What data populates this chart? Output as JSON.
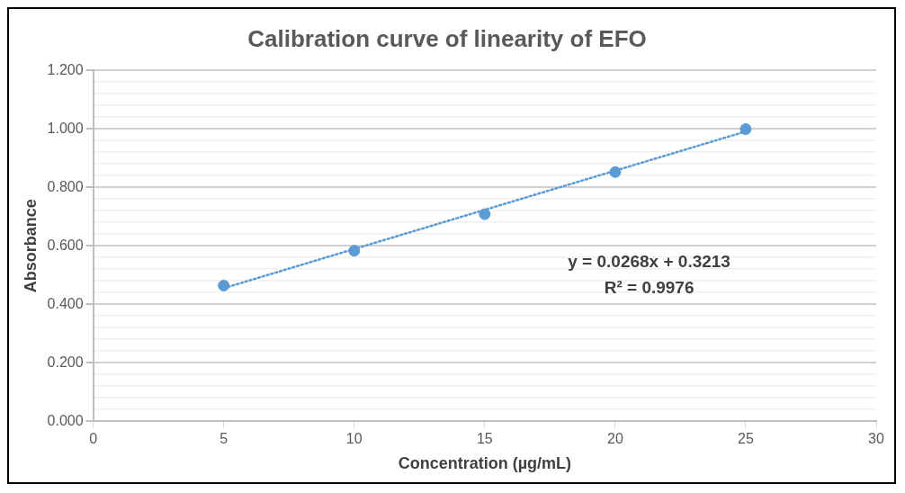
{
  "chart_data": {
    "type": "scatter",
    "title": "Calibration curve of linearity of EFO",
    "xlabel": "Concentration (µg/mL)",
    "ylabel": "Absorbance",
    "x": [
      5,
      10,
      15,
      20,
      25
    ],
    "series": [
      {
        "type": "scatter",
        "color": "#5b9bd5",
        "values": [
          0.464,
          0.583,
          0.708,
          0.852,
          0.999
        ],
        "marker": "circle"
      },
      {
        "type": "line",
        "color": "#5b9bd5",
        "x": [
          5,
          25
        ],
        "values": [
          0.455,
          0.991
        ],
        "line_style": "dotted",
        "marker": "none"
      }
    ],
    "xlim": [
      0,
      30
    ],
    "xticks": [
      0,
      5,
      10,
      15,
      20,
      25,
      30
    ],
    "ylim": [
      0,
      1.2
    ],
    "yticks": [
      {
        "value": 0,
        "label": "0.000"
      },
      {
        "value": 0.04,
        "label": null
      },
      {
        "value": 0.08,
        "label": null
      },
      {
        "value": 0.12,
        "label": null
      },
      {
        "value": 0.16,
        "label": null
      },
      {
        "value": 0.2,
        "label": "0.200"
      },
      {
        "value": 0.24,
        "label": null
      },
      {
        "value": 0.28,
        "label": null
      },
      {
        "value": 0.32,
        "label": null
      },
      {
        "value": 0.36,
        "label": null
      },
      {
        "value": 0.4,
        "label": "0.400"
      },
      {
        "value": 0.44,
        "label": null
      },
      {
        "value": 0.48,
        "label": null
      },
      {
        "value": 0.52,
        "label": null
      },
      {
        "value": 0.56,
        "label": null
      },
      {
        "value": 0.6,
        "label": "0.600"
      },
      {
        "value": 0.64,
        "label": null
      },
      {
        "value": 0.68,
        "label": null
      },
      {
        "value": 0.72,
        "label": null
      },
      {
        "value": 0.76,
        "label": null
      },
      {
        "value": 0.8,
        "label": "0.800"
      },
      {
        "value": 0.84,
        "label": null
      },
      {
        "value": 0.88,
        "label": null
      },
      {
        "value": 0.92,
        "label": null
      },
      {
        "value": 0.96,
        "label": null
      },
      {
        "value": 1.0,
        "label": "1.000"
      },
      {
        "value": 1.04,
        "label": null
      },
      {
        "value": 1.08,
        "label": null
      },
      {
        "value": 1.12,
        "label": null
      },
      {
        "value": 1.16,
        "label": null
      },
      {
        "value": 1.2,
        "label": "1.200"
      }
    ],
    "grid": "y",
    "legend": false,
    "annotations": [
      "y = 0.0268x + 0.3213",
      "R² = 0.9976"
    ]
  }
}
